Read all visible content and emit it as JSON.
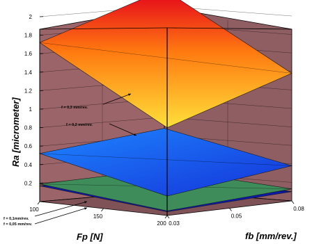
{
  "chart_data": {
    "type": "surface3d",
    "title": "",
    "xlabel": "Fp [N]",
    "ylabel": "fb [mm/rev.]",
    "zlabel": "Ra [micrometer]",
    "x_ticks": [
      "100",
      "150",
      "200"
    ],
    "y_ticks": [
      "0.03",
      "0.05",
      "0.08"
    ],
    "z_ticks": [
      "0.2",
      "0.4",
      "0.6",
      "0.8",
      "1",
      "1.2",
      "1.4",
      "1.6",
      "1.8",
      "2"
    ],
    "zlim": [
      0,
      2.15
    ],
    "series": [
      {
        "name": "f = 0,3 mm/rev.",
        "corners": {
          "Fp100_fb003": 1.72,
          "Fp200_fb003": 0.95,
          "Fp200_fb008": 1.38,
          "Fp100_fb008": 2.18
        }
      },
      {
        "name": "f = 0,2 mm/rev.",
        "corners": {
          "Fp100_fb003": 0.52,
          "Fp200_fb003": 0.21,
          "Fp200_fb008": 0.38,
          "Fp100_fb008": 0.68
        }
      },
      {
        "name": "f = 0,1mm/rev.",
        "corners": {
          "Fp100_fb003": 0.19,
          "Fp200_fb003": 0.05,
          "Fp200_fb008": 0.13,
          "Fp100_fb008": 0.24
        }
      },
      {
        "name": "f = 0,05 mm/rev.",
        "corners": {
          "Fp100_fb003": 0.17,
          "Fp200_fb003": 0.04,
          "Fp200_fb008": 0.1,
          "Fp100_fb008": 0.21
        }
      }
    ]
  }
}
